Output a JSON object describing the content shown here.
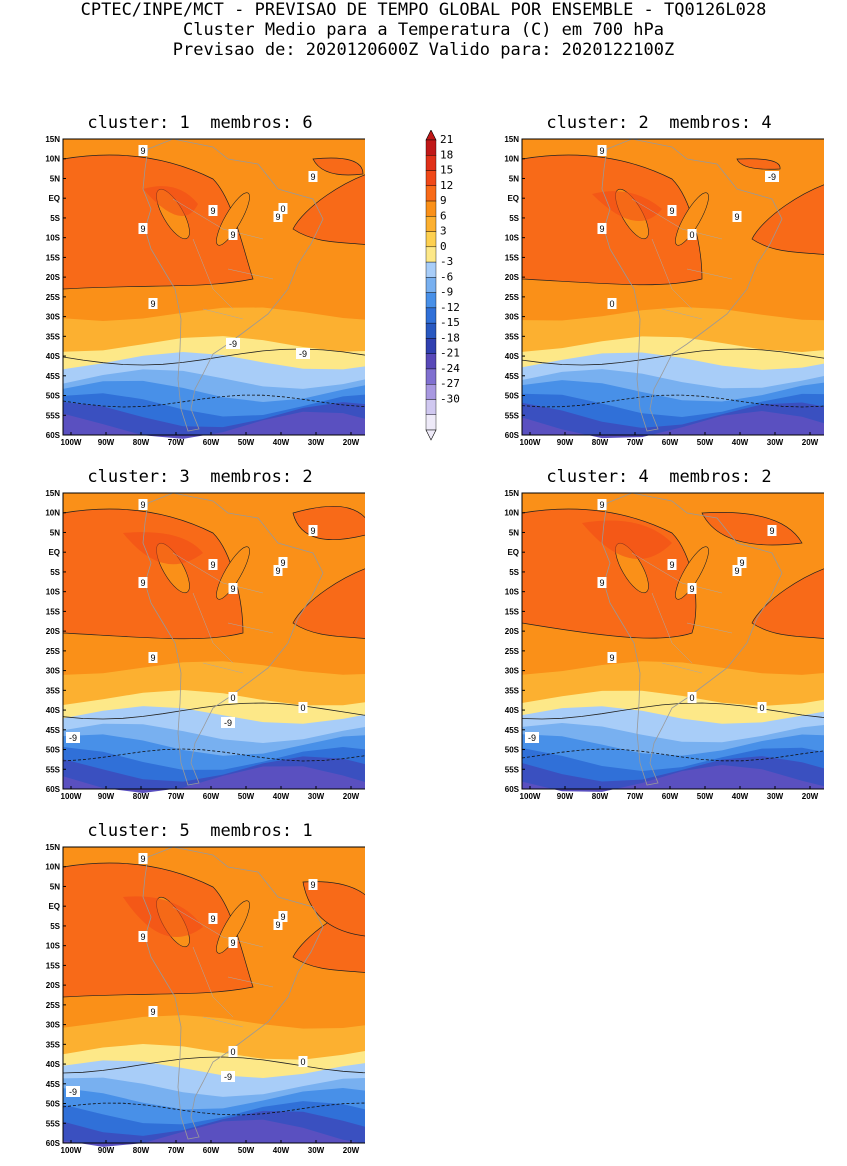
{
  "header": {
    "line1": "CPTEC/INPE/MCT - PREVISAO DE TEMPO GLOBAL POR ENSEMBLE - TQ0126L028",
    "line2": "Cluster Medio para a Temperatura (C) em 700 hPa",
    "line3": "Previsao de: 2020120600Z   Valido para: 2020122100Z"
  },
  "y_ticks": [
    "15N",
    "10N",
    "5N",
    "EQ",
    "5S",
    "10S",
    "15S",
    "20S",
    "25S",
    "30S",
    "35S",
    "40S",
    "45S",
    "50S",
    "55S",
    "60S"
  ],
  "x_ticks": [
    "100W",
    "90W",
    "80W",
    "70W",
    "60W",
    "50W",
    "40W",
    "30W",
    "20W"
  ],
  "colorbar": {
    "labels": [
      "21",
      "18",
      "15",
      "12",
      "9",
      "6",
      "3",
      "0",
      "-3",
      "-6",
      "-9",
      "-12",
      "-15",
      "-18",
      "-21",
      "-24",
      "-27",
      "-30"
    ],
    "colors": [
      "#c01818",
      "#e03018",
      "#f04818",
      "#f86a18",
      "#fa9018",
      "#fcb030",
      "#fdd050",
      "#fde888",
      "#a8cdf8",
      "#78b0f0",
      "#4890e8",
      "#3070d8",
      "#2858c0",
      "#3040b0",
      "#5848b8",
      "#8070d0",
      "#a898e0",
      "#d0c8f0",
      "#eeeaf8"
    ]
  },
  "panels": [
    {
      "title": "cluster: 1  membros: 6",
      "labels": [
        "9",
        "9",
        "9",
        "9",
        "9",
        "9",
        "9",
        "0",
        "-9",
        "-9"
      ]
    },
    {
      "title": "cluster: 2  membros: 4",
      "labels": [
        "9",
        "9",
        "9",
        "9",
        "0",
        "0",
        "-9"
      ]
    },
    {
      "title": "cluster: 3  membros: 2",
      "labels": [
        "9",
        "9",
        "9",
        "9",
        "9",
        "9",
        "9",
        "9",
        "0",
        "0",
        "-9",
        "-9"
      ]
    },
    {
      "title": "cluster: 4  membros: 2",
      "labels": [
        "9",
        "9",
        "9",
        "9",
        "9",
        "9",
        "9",
        "9",
        "0",
        "0",
        "-9"
      ]
    },
    {
      "title": "cluster: 5  membros: 1",
      "labels": [
        "9",
        "9",
        "9",
        "9",
        "9",
        "9",
        "9",
        "9",
        "0",
        "0",
        "-9",
        "-9"
      ]
    }
  ]
}
